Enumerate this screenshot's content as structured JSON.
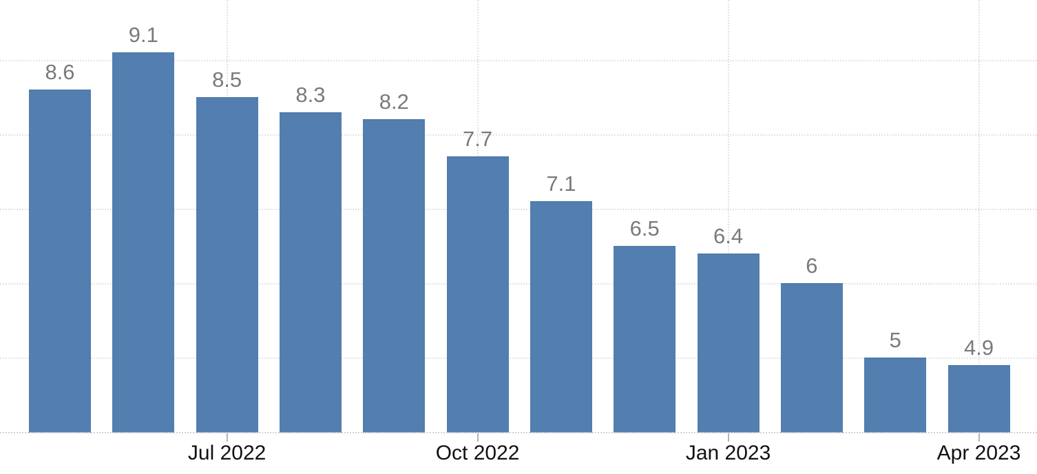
{
  "chart_data": {
    "type": "bar",
    "title": "",
    "xlabel": "",
    "ylabel": "",
    "values": [
      8.6,
      9.1,
      8.5,
      8.3,
      8.2,
      7.7,
      7.1,
      6.5,
      6.4,
      6,
      5,
      4.9
    ],
    "bar_labels": [
      "8.6",
      "9.1",
      "8.5",
      "8.3",
      "8.2",
      "7.7",
      "7.1",
      "6.5",
      "6.4",
      "6",
      "5",
      "4.9"
    ],
    "x_ticks": [
      {
        "index": 2,
        "label": "Jul 2022"
      },
      {
        "index": 5,
        "label": "Oct 2022"
      },
      {
        "index": 8,
        "label": "Jan 2023"
      },
      {
        "index": 11,
        "label": "Apr 2023"
      }
    ],
    "ylim": [
      4,
      9.8
    ],
    "gridlines_y": [
      5,
      6,
      7,
      8,
      9
    ],
    "grid_style": "dotted",
    "legend": "none",
    "colors": {
      "bar": "#527eb0",
      "bar_border": "#4a72a2",
      "value_label": "#7a7a7a",
      "axis_label": "#111111",
      "gridline": "#e2e2e2",
      "axis_line": "#d2d2d2",
      "tick": "#b4b4b4",
      "background": "#ffffff"
    }
  }
}
